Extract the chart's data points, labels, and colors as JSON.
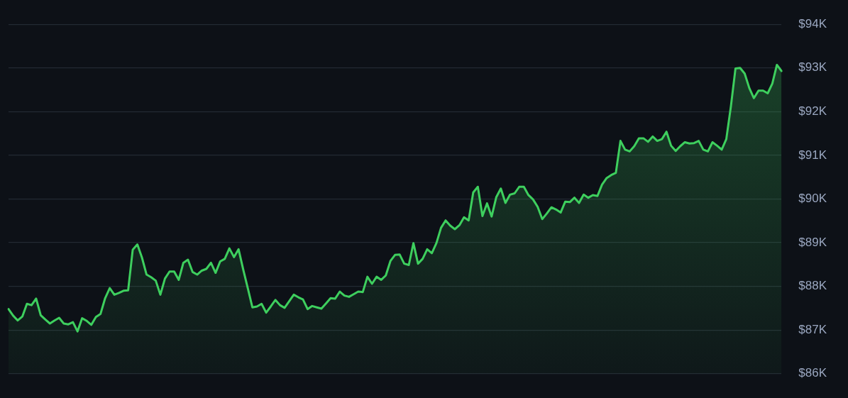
{
  "chart_data": {
    "type": "area",
    "categories": [
      null,
      null,
      null,
      null,
      null,
      null,
      null,
      null,
      null,
      null,
      null,
      null,
      null,
      null,
      null,
      null,
      null,
      null,
      null,
      null,
      null,
      null,
      null,
      null,
      null,
      null,
      null,
      null,
      null,
      null,
      null,
      null,
      null,
      null,
      null,
      null,
      null,
      null,
      null,
      null,
      null,
      null,
      null,
      null,
      null,
      null,
      null,
      null,
      null,
      null,
      null,
      null,
      null,
      null,
      null,
      null,
      null,
      null,
      null,
      null,
      null,
      null,
      null,
      null,
      null,
      null,
      null,
      null,
      null,
      null,
      null,
      null,
      null,
      null,
      null,
      null,
      null,
      null,
      null,
      null,
      null,
      null,
      null,
      null,
      null,
      null,
      null,
      null,
      null,
      null,
      null,
      null,
      null,
      null,
      null,
      null,
      null,
      null,
      null,
      null,
      null,
      null,
      null,
      null,
      null,
      null,
      null,
      null,
      null,
      null,
      null,
      null,
      null,
      null,
      null,
      null,
      null,
      null,
      null,
      null,
      null,
      null,
      null,
      null,
      null,
      null,
      null,
      null,
      null,
      null,
      null,
      null,
      null,
      null,
      null,
      null,
      null,
      null,
      null,
      null,
      null,
      null,
      null,
      null,
      null,
      null,
      null,
      null,
      null,
      null,
      null,
      null,
      null,
      null,
      null,
      null,
      null,
      null,
      null,
      null,
      null,
      null,
      null,
      null,
      null,
      null,
      null,
      null,
      null
    ],
    "series": [
      {
        "color": "#3ecf5e",
        "values": [
          87.48,
          87.33,
          87.22,
          87.31,
          87.6,
          87.57,
          87.72,
          87.34,
          87.24,
          87.15,
          87.22,
          87.28,
          87.15,
          87.13,
          87.18,
          86.97,
          87.27,
          87.21,
          87.12,
          87.3,
          87.37,
          87.73,
          87.96,
          87.81,
          87.85,
          87.9,
          87.91,
          88.84,
          88.96,
          88.66,
          88.27,
          88.21,
          88.13,
          87.81,
          88.18,
          88.34,
          88.34,
          88.15,
          88.54,
          88.61,
          88.33,
          88.27,
          88.36,
          88.4,
          88.54,
          88.31,
          88.57,
          88.63,
          88.87,
          88.67,
          88.85,
          88.39,
          87.96,
          87.52,
          87.54,
          87.6,
          87.4,
          87.54,
          87.69,
          87.57,
          87.51,
          87.66,
          87.81,
          87.75,
          87.7,
          87.48,
          87.55,
          87.52,
          87.49,
          87.61,
          87.73,
          87.72,
          87.88,
          87.79,
          87.76,
          87.82,
          87.88,
          87.87,
          88.22,
          88.06,
          88.22,
          88.15,
          88.25,
          88.58,
          88.72,
          88.73,
          88.52,
          88.49,
          88.99,
          88.52,
          88.63,
          88.85,
          88.76,
          88.99,
          89.34,
          89.51,
          89.39,
          89.31,
          89.4,
          89.58,
          89.51,
          90.15,
          90.28,
          89.61,
          89.9,
          89.6,
          90.04,
          90.24,
          89.91,
          90.1,
          90.13,
          90.28,
          90.28,
          90.09,
          89.99,
          89.82,
          89.54,
          89.67,
          89.81,
          89.76,
          89.69,
          89.94,
          89.93,
          90.03,
          89.91,
          90.1,
          90.03,
          90.09,
          90.07,
          90.33,
          90.48,
          90.55,
          90.6,
          91.33,
          91.13,
          91.09,
          91.21,
          91.39,
          91.39,
          91.31,
          91.43,
          91.33,
          91.37,
          91.54,
          91.22,
          91.1,
          91.21,
          91.3,
          91.27,
          91.28,
          91.33,
          91.13,
          91.09,
          91.3,
          91.22,
          91.13,
          91.37,
          92.12,
          92.99,
          93.0,
          92.87,
          92.54,
          92.31,
          92.48,
          92.48,
          92.42,
          92.64,
          93.07,
          92.93
        ]
      }
    ],
    "ylim": [
      86,
      94
    ],
    "yticks": [
      {
        "value": 86,
        "label": "$86K"
      },
      {
        "value": 87,
        "label": "$87K"
      },
      {
        "value": 88,
        "label": "$88K"
      },
      {
        "value": 89,
        "label": "$89K"
      },
      {
        "value": 90,
        "label": "$90K"
      },
      {
        "value": 91,
        "label": "$91K"
      },
      {
        "value": 92,
        "label": "$92K"
      },
      {
        "value": 93,
        "label": "$93K"
      },
      {
        "value": 94,
        "label": "$94K"
      }
    ],
    "grid": "y",
    "legend": false,
    "tick_labels": "y",
    "marker": "none",
    "line_style": "solid"
  }
}
